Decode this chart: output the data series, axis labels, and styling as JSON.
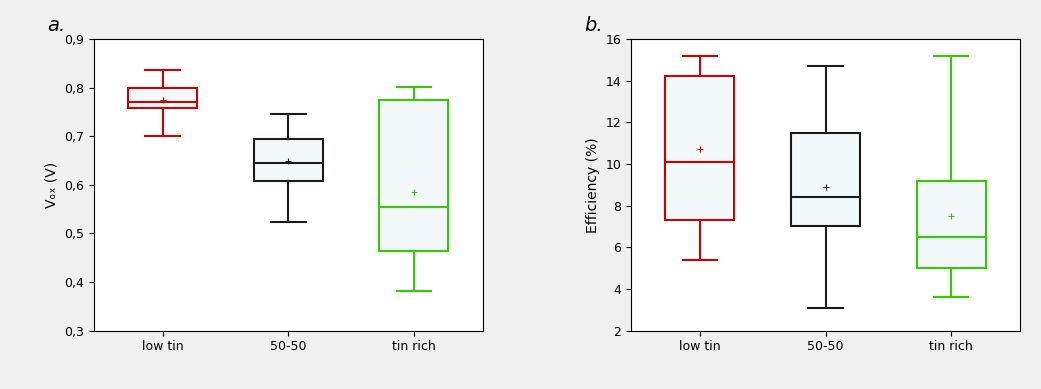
{
  "panel_a": {
    "title": "a.",
    "ylabel": "Vₒₓ (V)",
    "categories": [
      "low tin",
      "50-50",
      "tin rich"
    ],
    "colors": [
      "#cc0000",
      "#1a1a1a",
      "#33cc00"
    ],
    "ylim": [
      0.3,
      0.9
    ],
    "yticks": [
      0.3,
      0.4,
      0.5,
      0.6,
      0.7,
      0.8,
      0.9
    ],
    "ytick_labels": [
      "0,3",
      "0,4",
      "0,5",
      "0,6",
      "0,7",
      "0,8",
      "0,9"
    ],
    "boxes": [
      {
        "whislo": 0.7,
        "q1": 0.758,
        "med": 0.77,
        "q3": 0.8,
        "whishi": 0.836,
        "mean": 0.775
      },
      {
        "whislo": 0.524,
        "q1": 0.607,
        "med": 0.645,
        "q3": 0.695,
        "whishi": 0.745,
        "mean": 0.648
      },
      {
        "whislo": 0.382,
        "q1": 0.463,
        "med": 0.555,
        "q3": 0.775,
        "whishi": 0.802,
        "mean": 0.585
      }
    ]
  },
  "panel_b": {
    "title": "b.",
    "ylabel": "Efficiency (%)",
    "categories": [
      "low tin",
      "50-50",
      "tin rich"
    ],
    "colors": [
      "#cc0000",
      "#1a1a1a",
      "#33cc00"
    ],
    "ylim": [
      2,
      16
    ],
    "yticks": [
      2,
      4,
      6,
      8,
      10,
      12,
      14,
      16
    ],
    "ytick_labels": [
      "2",
      "4",
      "6",
      "8",
      "10",
      "12",
      "14",
      "16"
    ],
    "boxes": [
      {
        "whislo": 5.4,
        "q1": 7.3,
        "med": 10.1,
        "q3": 14.2,
        "whishi": 15.2,
        "mean": 10.7
      },
      {
        "whislo": 3.1,
        "q1": 7.0,
        "med": 8.4,
        "q3": 11.5,
        "whishi": 14.7,
        "mean": 8.9
      },
      {
        "whislo": 3.6,
        "q1": 5.0,
        "med": 6.5,
        "q3": 9.2,
        "whishi": 15.2,
        "mean": 7.5
      }
    ]
  },
  "background_color": "#ffffff",
  "fig_background": "#f0f0f0",
  "box_width": 0.55,
  "linewidth": 1.5,
  "mean_markersize": 3
}
